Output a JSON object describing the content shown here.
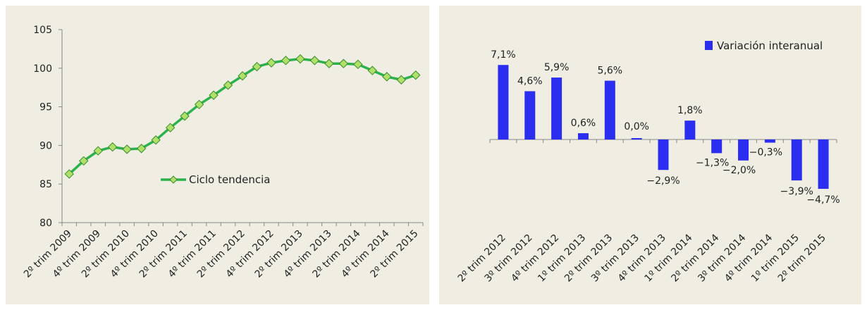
{
  "colors": {
    "background": "#f0ede3",
    "line": "#2bb24c",
    "marker_fill": "#aee06a",
    "marker_edge": "#3a8c2b",
    "bar": "#2b2ef0",
    "axis": "#888888"
  },
  "chart_data": [
    {
      "type": "line",
      "title": "",
      "xlabel": "",
      "ylabel": "",
      "ylim": [
        80,
        105
      ],
      "yticks": [
        80,
        85,
        90,
        95,
        100,
        105
      ],
      "x": [
        "2º trim 2009",
        "3º trim 2009",
        "4º trim 2009",
        "1º trim 2010",
        "2º trim 2010",
        "3º trim 2010",
        "4º trim 2010",
        "1º trim 2011",
        "2º trim 2011",
        "3º trim 2011",
        "4º trim 2011",
        "1º trim 2012",
        "2º trim 2012",
        "3º trim 2012",
        "4º trim 2012",
        "1º trim 2013",
        "2º trim 2013",
        "3º trim 2013",
        "4º trim 2013",
        "1º trim 2014",
        "2º trim 2014",
        "3º trim 2014",
        "4º trim 2014",
        "1º trim 2015",
        "2º trim 2015"
      ],
      "x_tick_labels": [
        "2º trim 2009",
        "4º trim 2009",
        "2º trim 2010",
        "4º trim 2010",
        "2º trim 2011",
        "4º trim 2011",
        "2º trim 2012",
        "4º trim 2012",
        "2º trim 2013",
        "4º trim 2013",
        "2º trim 2014",
        "4º trim 2014",
        "2º trim 2015"
      ],
      "grid": false,
      "legend_position": "center",
      "series": [
        {
          "name": "Ciclo tendencia",
          "values": [
            86.3,
            88.0,
            89.3,
            89.8,
            89.5,
            89.6,
            90.7,
            92.3,
            93.8,
            95.3,
            96.5,
            97.8,
            99.0,
            100.2,
            100.7,
            101.0,
            101.2,
            101.0,
            100.6,
            100.6,
            100.5,
            99.7,
            98.9,
            98.5,
            99.1
          ]
        }
      ]
    },
    {
      "type": "bar",
      "title": "",
      "xlabel": "",
      "ylabel": "",
      "ylim": [
        -6.5,
        8.0
      ],
      "grid": false,
      "legend_position": "top-right",
      "categories": [
        "2º trim 2012",
        "3º trim 2012",
        "4º trim 2012",
        "1º trim 2013",
        "2º trim 2013",
        "3º trim 2013",
        "4º trim 2013",
        "1º trim 2014",
        "2º trim 2014",
        "3º trim 2014",
        "4º trim 2014",
        "1º trim 2015",
        "2º trim 2015"
      ],
      "series": [
        {
          "name": "Variación interanual",
          "values": [
            7.1,
            4.6,
            5.9,
            0.6,
            5.6,
            0.0,
            -2.9,
            1.8,
            -1.3,
            -2.0,
            -0.3,
            -3.9,
            -4.7
          ],
          "labels": [
            "7,1%",
            "4,6%",
            "5,9%",
            "0,6%",
            "5,6%",
            "0,0%",
            "-2,9%",
            "1,8%",
            "-1,3%",
            "-2,0%",
            "-0,3%",
            "-3,9%",
            "-4,7%"
          ]
        }
      ]
    }
  ]
}
